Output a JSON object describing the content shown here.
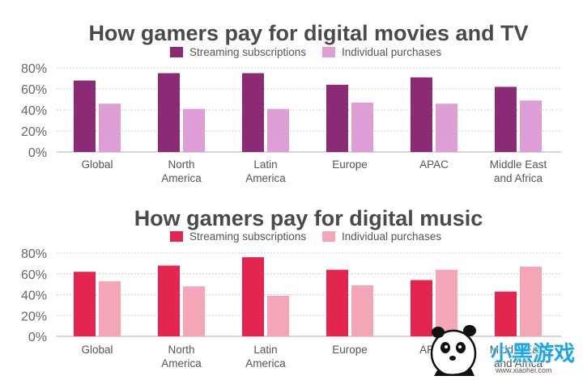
{
  "chart_data": [
    {
      "type": "bar",
      "title": "How gamers pay for digital movies and TV",
      "categories": [
        [
          "Global"
        ],
        [
          "North",
          "America"
        ],
        [
          "Latin",
          "America"
        ],
        [
          "Europe"
        ],
        [
          "APAC"
        ],
        [
          "Middle East",
          "and Africa"
        ]
      ],
      "series": [
        {
          "name": "Streaming subscriptions",
          "color": "#8b2a75",
          "values": [
            68,
            75,
            75,
            64,
            71,
            62
          ]
        },
        {
          "name": "Individual purchases",
          "color": "#dd9fd6",
          "values": [
            46,
            41,
            41,
            47,
            46,
            49
          ]
        }
      ],
      "yticks": [
        "0%",
        "20%",
        "40%",
        "60%",
        "80%"
      ],
      "ylim": [
        0,
        80
      ],
      "grid": true,
      "legend": "top-center",
      "xlabel": "",
      "ylabel": ""
    },
    {
      "type": "bar",
      "title": "How gamers pay for digital music",
      "categories": [
        [
          "Global"
        ],
        [
          "North",
          "America"
        ],
        [
          "Latin",
          "America"
        ],
        [
          "Europe"
        ],
        [
          "APAC"
        ],
        [
          "Middle East",
          "and Africa"
        ]
      ],
      "series": [
        {
          "name": "Streaming subscriptions",
          "color": "#e3264f",
          "values": [
            62,
            68,
            76,
            64,
            54,
            43
          ]
        },
        {
          "name": "Individual purchases",
          "color": "#f4a6b6",
          "values": [
            53,
            48,
            39,
            49,
            64,
            67
          ]
        }
      ],
      "yticks": [
        "0%",
        "20%",
        "40%",
        "60%",
        "80%"
      ],
      "ylim": [
        0,
        80
      ],
      "grid": true,
      "legend": "top-center",
      "xlabel": "",
      "ylabel": ""
    }
  ],
  "watermark": {
    "title": "小黑游戏",
    "url": "www.xiaohei.com",
    "colors": {
      "title": "#1ea6e6"
    }
  }
}
